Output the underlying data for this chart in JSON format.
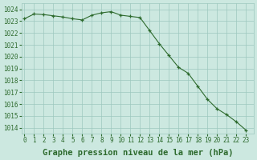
{
  "x": [
    0,
    1,
    2,
    3,
    4,
    5,
    6,
    7,
    8,
    9,
    10,
    11,
    12,
    13,
    14,
    15,
    16,
    17,
    18,
    19,
    20,
    21,
    22,
    23
  ],
  "y": [
    1023.2,
    1023.6,
    1023.55,
    1023.45,
    1023.35,
    1023.2,
    1023.1,
    1023.5,
    1023.7,
    1023.8,
    1023.5,
    1023.4,
    1023.3,
    1022.2,
    1021.1,
    1020.1,
    1019.1,
    1018.6,
    1017.5,
    1016.4,
    1015.6,
    1015.1,
    1014.5,
    1013.8
  ],
  "ylim": [
    1013.5,
    1024.5
  ],
  "xlim": [
    -0.3,
    23.8
  ],
  "yticks": [
    1014,
    1015,
    1016,
    1017,
    1018,
    1019,
    1020,
    1021,
    1022,
    1023,
    1024
  ],
  "xticks": [
    0,
    1,
    2,
    3,
    4,
    5,
    6,
    7,
    8,
    9,
    10,
    11,
    12,
    13,
    14,
    15,
    16,
    17,
    18,
    19,
    20,
    21,
    22,
    23
  ],
  "xlabel": "Graphe pression niveau de la mer (hPa)",
  "line_color": "#2d6a2d",
  "marker": "+",
  "bg_color": "#cce8e0",
  "grid_color": "#9ec8be",
  "tick_color": "#2d6a2d",
  "label_color": "#2d6a2d",
  "tick_fontsize": 5.5,
  "xlabel_fontsize": 7.5
}
